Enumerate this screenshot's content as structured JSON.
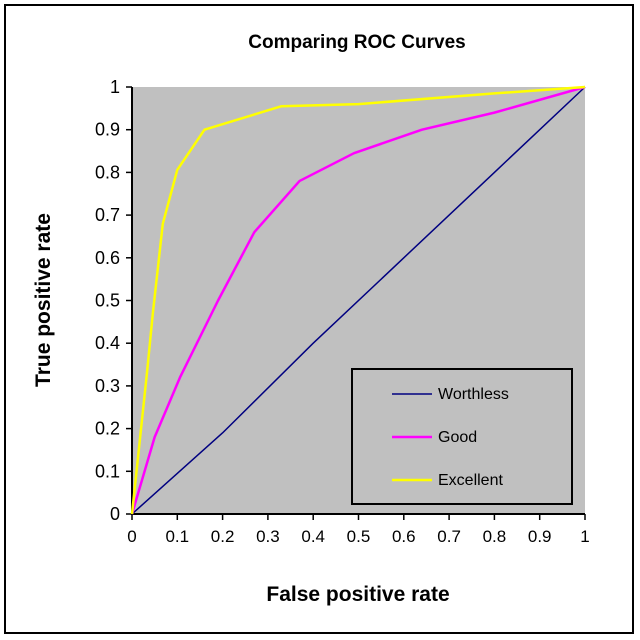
{
  "chart_data": {
    "type": "line",
    "title": "Comparing ROC Curves",
    "xlabel": "False positive rate",
    "ylabel": "True positive rate",
    "xlim": [
      0,
      1
    ],
    "ylim": [
      0,
      1
    ],
    "xticks": [
      "0",
      "0.1",
      "0.2",
      "0.3",
      "0.4",
      "0.5",
      "0.6",
      "0.7",
      "0.8",
      "0.9",
      "1"
    ],
    "yticks": [
      "0",
      "0.1",
      "0.2",
      "0.3",
      "0.4",
      "0.5",
      "0.6",
      "0.7",
      "0.8",
      "0.9",
      "1"
    ],
    "grid": false,
    "plot_background": "#c0c0c0",
    "legend_position": "bottom-right",
    "series": [
      {
        "name": "Worthless",
        "color": "#000080",
        "x": [
          0,
          0.2,
          0.4,
          0.6,
          0.8,
          1
        ],
        "y": [
          0,
          0.19,
          0.4,
          0.6,
          0.8,
          1
        ]
      },
      {
        "name": "Good",
        "color": "#ff00ff",
        "x": [
          0,
          0.05,
          0.106,
          0.19,
          0.27,
          0.37,
          0.49,
          0.64,
          0.8,
          1
        ],
        "y": [
          0,
          0.18,
          0.32,
          0.5,
          0.66,
          0.78,
          0.845,
          0.9,
          0.94,
          1
        ]
      },
      {
        "name": "Excellent",
        "color": "#ffff00",
        "x": [
          0,
          0.033,
          0.046,
          0.068,
          0.1,
          0.16,
          0.33,
          0.5,
          0.8,
          1
        ],
        "y": [
          0,
          0.33,
          0.47,
          0.68,
          0.806,
          0.9,
          0.955,
          0.96,
          0.985,
          1
        ]
      }
    ]
  }
}
